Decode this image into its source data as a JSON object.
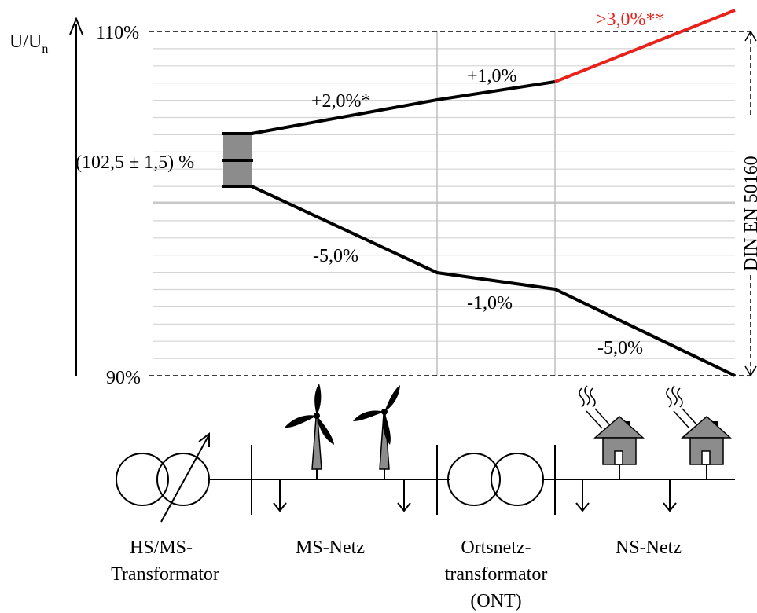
{
  "axis": {
    "y_label_main": "U/U",
    "y_label_sub": "n",
    "max_label": "110%",
    "min_label": "90%",
    "norm_label": "DIN EN 50160"
  },
  "setpoint_label": "(102,5 ± 1,5) %",
  "upper_path": {
    "ms_label": "+2,0%*",
    "ont_label": "+1,0%",
    "ns_label": ">3,0%**"
  },
  "lower_path": {
    "ms_label": "-5,0%",
    "ont_label": "-1,0%",
    "ns_label": "-5,0%"
  },
  "sections": {
    "hs_ms_line1": "HS/MS-",
    "hs_ms_line2": "Transformator",
    "ms_netz": "MS-Netz",
    "ont_line1": "Ortsnetz-",
    "ont_line2": "transformator",
    "ont_line3": "(ONT)",
    "ns_netz": "NS-Netz"
  },
  "colors": {
    "line": "#000000",
    "overvoltage": "#e8221b",
    "grid": "#d4d4d4",
    "divider": "#bdbdbd",
    "device_fill": "#8c8c8c"
  }
}
